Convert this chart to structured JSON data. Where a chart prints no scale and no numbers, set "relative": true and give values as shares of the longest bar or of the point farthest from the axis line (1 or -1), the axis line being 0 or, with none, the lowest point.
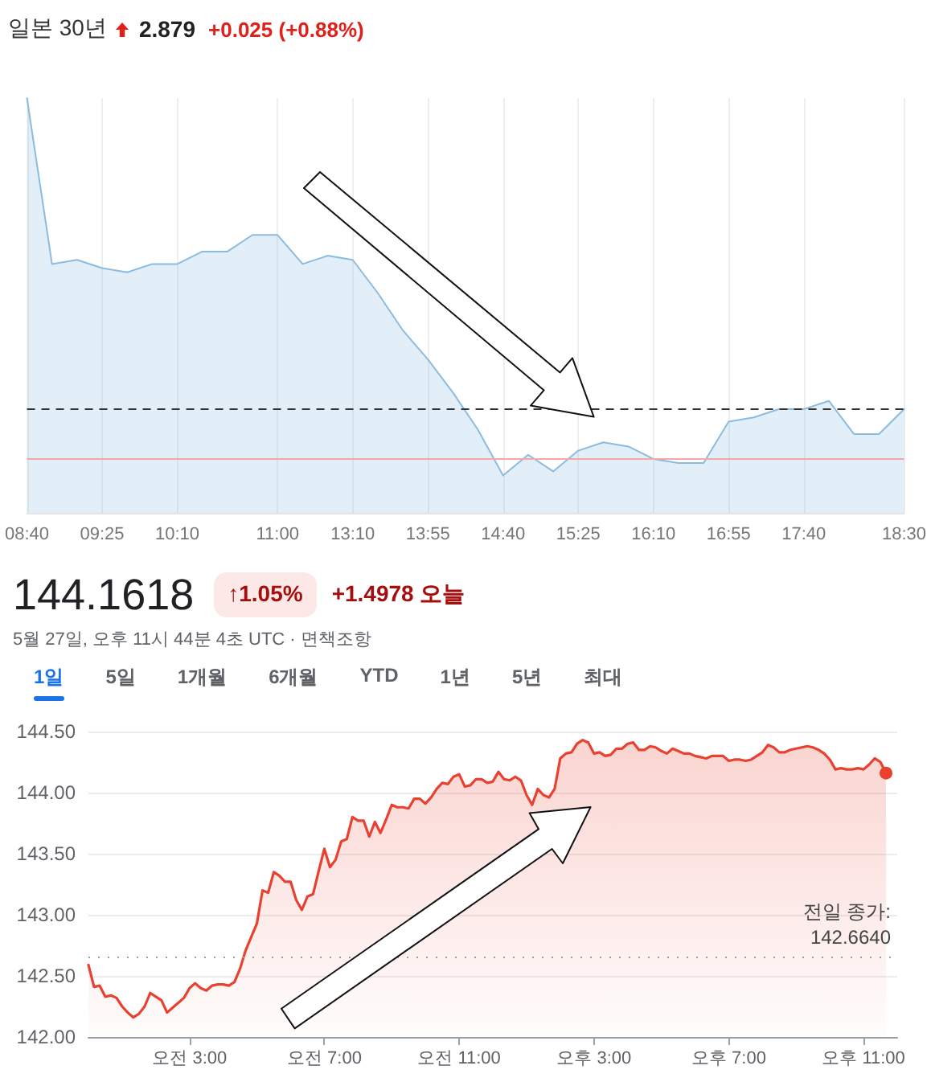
{
  "chart_data": [
    {
      "type": "area",
      "title": "일본 30년",
      "annotations": [
        "2.879",
        "+0.025 (+0.88%)"
      ],
      "relative": true,
      "grid": "x",
      "categories": [
        "08:40",
        null,
        null,
        "09:25",
        null,
        null,
        "10:10",
        null,
        null,
        null,
        "11:00",
        null,
        null,
        "13:10",
        null,
        null,
        "13:55",
        null,
        null,
        "14:40",
        null,
        null,
        "15:25",
        null,
        null,
        "16:10",
        null,
        null,
        "16:55",
        null,
        null,
        "17:40",
        null,
        null,
        null,
        "18:30"
      ],
      "series": [
        {
          "color": "#8cbbe0",
          "values": [
            1,
            0.6,
            0.61,
            0.59,
            0.58,
            0.6,
            0.6,
            0.63,
            0.63,
            0.67,
            0.67,
            0.6,
            0.62,
            0.61,
            0.53,
            0.44,
            0.37,
            0.29,
            0.2,
            0.09,
            0.14,
            0.1,
            0.15,
            0.17,
            0.16,
            0.13,
            0.12,
            0.12,
            0.22,
            0.23,
            0.25,
            0.25,
            0.27,
            0.19,
            0.19,
            0.25
          ]
        }
      ],
      "ref_lines": [
        {
          "axis": "y",
          "value": 0.25,
          "color": "#333333",
          "line_style": "dashed"
        },
        {
          "axis": "y",
          "value": 0.13,
          "color": "#f4a7a7",
          "line_style": "solid"
        }
      ]
    },
    {
      "type": "area",
      "title": "144.1618",
      "subtitle": "5월 27일, 오후 11시 44분 4초 UTC · 면책조항",
      "annotations": [
        "↑1.05%",
        "+1.4978 오늘",
        "1일",
        "5일",
        "1개월",
        "6개월",
        "YTD",
        "1년",
        "5년",
        "최대"
      ],
      "grid": "y",
      "categories": [
        null,
        null,
        null,
        null,
        null,
        null,
        null,
        null,
        null,
        null,
        null,
        null,
        null,
        null,
        null,
        null,
        null,
        null,
        "오전 3:00",
        null,
        null,
        null,
        null,
        null,
        null,
        null,
        null,
        null,
        null,
        null,
        null,
        null,
        null,
        null,
        null,
        null,
        null,
        null,
        null,
        null,
        null,
        null,
        "오전 7:00",
        null,
        null,
        null,
        null,
        null,
        null,
        null,
        null,
        null,
        null,
        null,
        null,
        null,
        null,
        null,
        null,
        null,
        null,
        null,
        null,
        null,
        null,
        null,
        "오전 11:00",
        null,
        null,
        null,
        null,
        null,
        null,
        null,
        null,
        null,
        null,
        null,
        null,
        null,
        null,
        null,
        null,
        null,
        null,
        null,
        null,
        null,
        null,
        null,
        "오후 3:00",
        null,
        null,
        null,
        null,
        null,
        null,
        null,
        null,
        null,
        null,
        null,
        null,
        null,
        null,
        null,
        null,
        null,
        null,
        null,
        null,
        null,
        null,
        null,
        "오후 7:00",
        null,
        null,
        null,
        null,
        null,
        null,
        null,
        null,
        null,
        null,
        null,
        null,
        null,
        null,
        null,
        null,
        null,
        null,
        null,
        null,
        null,
        null,
        null,
        "오후 11:00",
        null,
        null,
        null,
        null,
        null,
        null
      ],
      "ylim": [
        142,
        144.5
      ],
      "yticks": [
        {
          "value": 142,
          "label": "142.00"
        },
        {
          "value": 142.5,
          "label": "142.50"
        },
        {
          "value": 143,
          "label": "143.00"
        },
        {
          "value": 143.5,
          "label": "143.50"
        },
        {
          "value": 144,
          "label": "144.00"
        },
        {
          "value": 144.5,
          "label": "144.50"
        }
      ],
      "series": [
        {
          "color": "#e8412f",
          "values": [
            142.59,
            142.41,
            142.42,
            142.33,
            142.34,
            142.32,
            142.25,
            142.2,
            142.16,
            142.19,
            142.25,
            142.36,
            142.33,
            142.3,
            142.2,
            142.24,
            142.28,
            142.32,
            142.4,
            142.44,
            142.4,
            142.38,
            142.42,
            142.43,
            142.43,
            142.42,
            142.45,
            142.56,
            142.71,
            142.82,
            142.93,
            143.2,
            143.18,
            143.35,
            143.32,
            143.27,
            143.27,
            143.12,
            143.04,
            143.15,
            143.17,
            143.36,
            143.54,
            143.39,
            143.45,
            143.6,
            143.62,
            143.8,
            143.77,
            143.77,
            143.64,
            143.76,
            143.67,
            143.78,
            143.9,
            143.88,
            143.88,
            143.87,
            143.95,
            143.95,
            143.91,
            143.96,
            144.03,
            144.08,
            144.07,
            144.13,
            144.15,
            144.05,
            144.06,
            144.11,
            144.11,
            144.08,
            144.09,
            144.17,
            144.11,
            144.1,
            144.13,
            144.1,
            143.98,
            143.9,
            144.03,
            143.98,
            143.96,
            144.03,
            144.28,
            144.32,
            144.33,
            144.4,
            144.43,
            144.41,
            144.32,
            144.33,
            144.3,
            144.31,
            144.36,
            144.36,
            144.4,
            144.41,
            144.35,
            144.35,
            144.38,
            144.37,
            144.34,
            144.32,
            144.36,
            144.34,
            144.32,
            144.32,
            144.3,
            144.29,
            144.28,
            144.3,
            144.3,
            144.3,
            144.26,
            144.27,
            144.27,
            144.26,
            144.27,
            144.3,
            144.33,
            144.39,
            144.37,
            144.33,
            144.33,
            144.35,
            144.36,
            144.37,
            144.38,
            144.37,
            144.35,
            144.32,
            144.27,
            144.19,
            144.2,
            144.19,
            144.19,
            144.2,
            144.19,
            144.23,
            144.28,
            144.25,
            144.16,
            null,
            null
          ]
        }
      ],
      "ref_lines": [
        {
          "axis": "y",
          "value": 142.664,
          "label": "전일 종가:\n142.6640",
          "color": "#9e9e9e",
          "line_style": "dotted"
        }
      ]
    }
  ]
}
